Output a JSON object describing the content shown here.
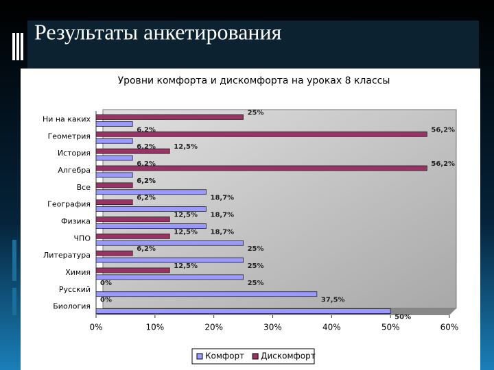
{
  "slide_title": "Результаты анкетирования",
  "chart_data": {
    "type": "bar",
    "orientation": "horizontal",
    "title": "Уровни комфорта и дискомфорта на уроках 8 классы",
    "categories": [
      "Ни на каких",
      "Геометрия",
      "История",
      "Алгебра",
      "Все",
      "География",
      "Физика",
      "ЧПО",
      "Литература",
      "Химия",
      "Русский",
      "Биология"
    ],
    "series": [
      {
        "name": "Комфорт",
        "color": "#9999ff",
        "values": [
          6.2,
          6.2,
          6.2,
          6.2,
          18.7,
          18.7,
          18.7,
          25,
          25,
          25,
          37.5,
          50
        ],
        "value_labels": [
          "6,2%",
          "6,2%",
          "6,2%",
          "6,2%",
          "18,7%",
          "18,7%",
          "18,7%",
          "25%",
          "25%",
          "25%",
          "37,5%",
          "50%"
        ]
      },
      {
        "name": "Дискомфорт",
        "color": "#993366",
        "values": [
          25,
          56.2,
          12.5,
          56.2,
          6.2,
          6.2,
          12.5,
          12.5,
          6.2,
          12.5,
          0,
          0
        ],
        "value_labels": [
          "25%",
          "56,2%",
          "12,5%",
          "56,2%",
          "6,2%",
          "6,2%",
          "12,5%",
          "12,5%",
          "6,2%",
          "12,5%",
          "0%",
          "0%"
        ]
      }
    ],
    "xlim": [
      0,
      60
    ],
    "xticks": [
      {
        "value": 0,
        "label": "0%"
      },
      {
        "value": 10,
        "label": "10%"
      },
      {
        "value": 20,
        "label": "20%"
      },
      {
        "value": 30,
        "label": "30%"
      },
      {
        "value": 40,
        "label": "40%"
      },
      {
        "value": 50,
        "label": "50%"
      },
      {
        "value": 60,
        "label": "60%"
      }
    ],
    "legend": "bottom"
  }
}
